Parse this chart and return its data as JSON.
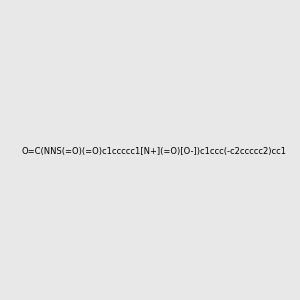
{
  "smiles": "O=C(NNS(=O)(=O)c1ccccc1[N+](=O)[O-])c1ccc(-c2ccccc2)cc1",
  "image_size": 300,
  "background_color": "#e8e8e8"
}
